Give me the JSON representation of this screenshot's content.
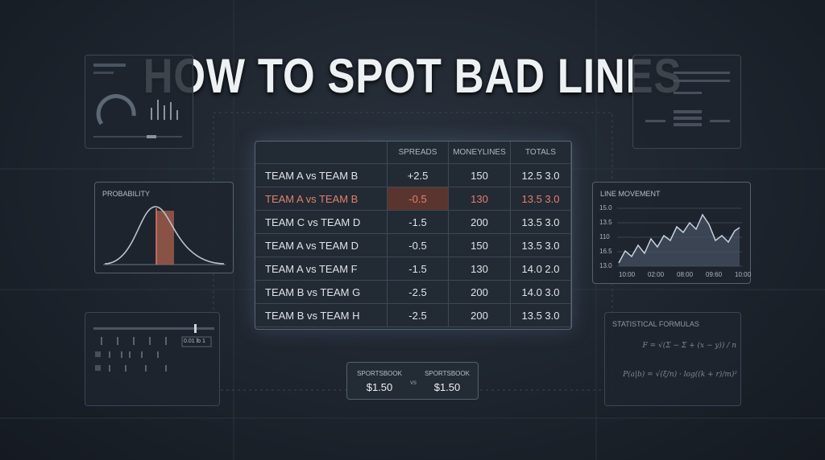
{
  "header": {
    "title": "HOW TO SPOT BAD LINES"
  },
  "table": {
    "columns": [
      "SPREADS",
      "MONEYLINES",
      "TOTALS"
    ],
    "rows": [
      [
        "TEAM A vs TEAM B",
        "+2.5",
        "150",
        "12.5 3.0"
      ],
      [
        "TEAM A vs TEAM B",
        "-0.5",
        "130",
        "13.5 3.0"
      ],
      [
        "TEAM C vs TEAM D",
        "-1.5",
        "200",
        "13.5 3.0"
      ],
      [
        "TEAM A vs TEAM D",
        "-0.5",
        "150",
        "13.5 3.0"
      ],
      [
        "TEAM A vs TEAM F",
        "-1.5",
        "130",
        "14.0 2.0"
      ],
      [
        "TEAM B vs TEAM G",
        "-2.5",
        "200",
        "14.0 3.0"
      ],
      [
        "TEAM B vs TEAM H",
        "-2.5",
        "200",
        "13.5 3.0"
      ]
    ]
  },
  "probability": {
    "label": "PROBABILITY"
  },
  "line_movement": {
    "label": "LINE MOVEMENT",
    "y_labels": [
      "15.0",
      "13.5",
      "110",
      "16.5",
      "13.0"
    ],
    "x_labels": [
      "10:00",
      "02:00",
      "08:00",
      "09:60",
      "10:00"
    ]
  },
  "formulas": {
    "label": "STATISTICAL FORMULAS",
    "items": [
      "F = √(Σ − Σ + (x − y)) / n",
      "P(a|b) = √(ξ/n) · log((k + r)/m)²"
    ]
  },
  "comparison": {
    "left": {
      "label": "SPORTSBOOK",
      "price": "$1.50"
    },
    "separator": "vs",
    "right": {
      "label": "SPORTSBOOK",
      "price": "$1.50"
    }
  },
  "widget": {
    "readout": "0.01 lb 1"
  }
}
